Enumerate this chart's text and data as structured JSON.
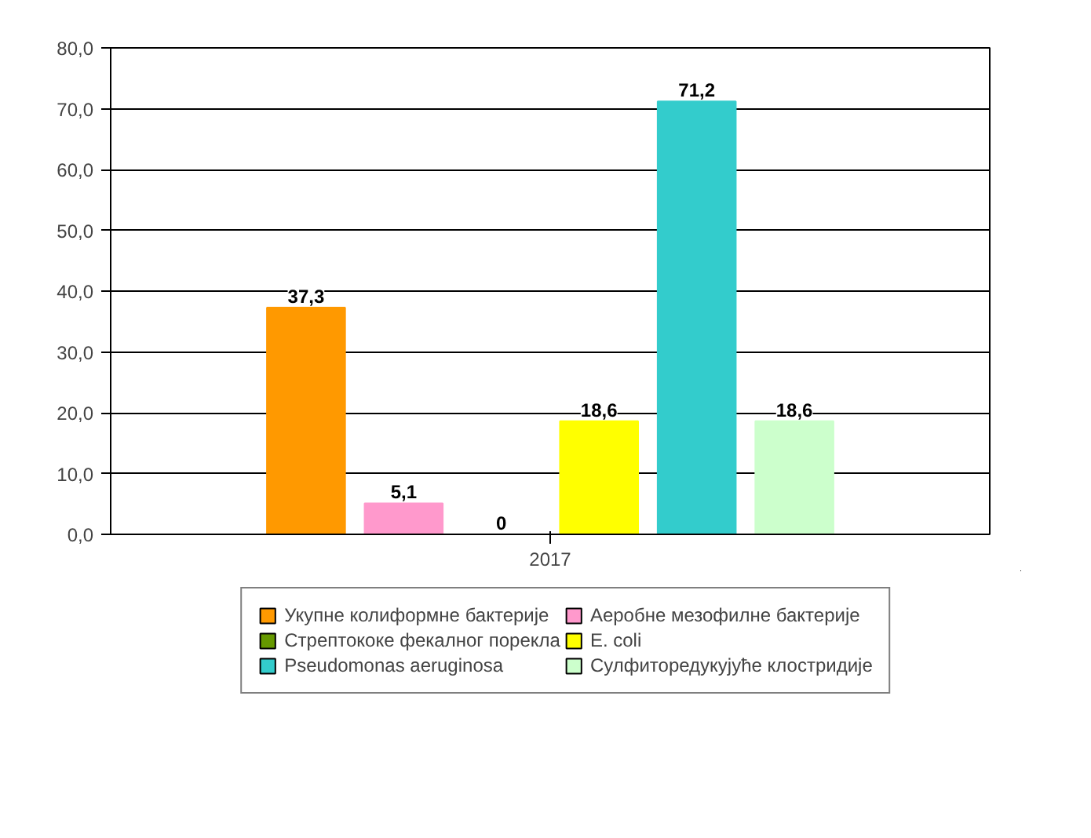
{
  "chart_data": {
    "type": "bar",
    "categories": [
      "2017"
    ],
    "series": [
      {
        "name": "Укупне колиформне бактерије",
        "color": "#ff9900",
        "values": [
          37.3
        ],
        "value_labels": [
          "37,3"
        ]
      },
      {
        "name": "Аеробне мезофилне бактерије",
        "color": "#ff99cc",
        "values": [
          5.1
        ],
        "value_labels": [
          "5,1"
        ]
      },
      {
        "name": "Стрептококе фекалног порекла",
        "color": "#669900",
        "values": [
          0
        ],
        "value_labels": [
          "0"
        ]
      },
      {
        "name": "E. coli",
        "color": "#ffff00",
        "values": [
          18.6
        ],
        "value_labels": [
          "18,6"
        ]
      },
      {
        "name": "Pseudomonas aeruginosa",
        "color": "#33cccc",
        "values": [
          71.2
        ],
        "value_labels": [
          "71,2"
        ]
      },
      {
        "name": "Сулфиторедукујуће клостридије",
        "color": "#ccffcc",
        "values": [
          18.6
        ],
        "value_labels": [
          "18,6"
        ]
      }
    ],
    "ylim": [
      0,
      80
    ],
    "yticks": [
      {
        "value": 0,
        "label": "0,0"
      },
      {
        "value": 10,
        "label": "10,0"
      },
      {
        "value": 20,
        "label": "20,0"
      },
      {
        "value": 30,
        "label": "30,0"
      },
      {
        "value": 40,
        "label": "40,0"
      },
      {
        "value": 50,
        "label": "50,0"
      },
      {
        "value": 60,
        "label": "60,0"
      },
      {
        "value": 70,
        "label": "70,0"
      },
      {
        "value": 80,
        "label": "80,0"
      }
    ],
    "grid": "y",
    "legend": "bottom"
  }
}
